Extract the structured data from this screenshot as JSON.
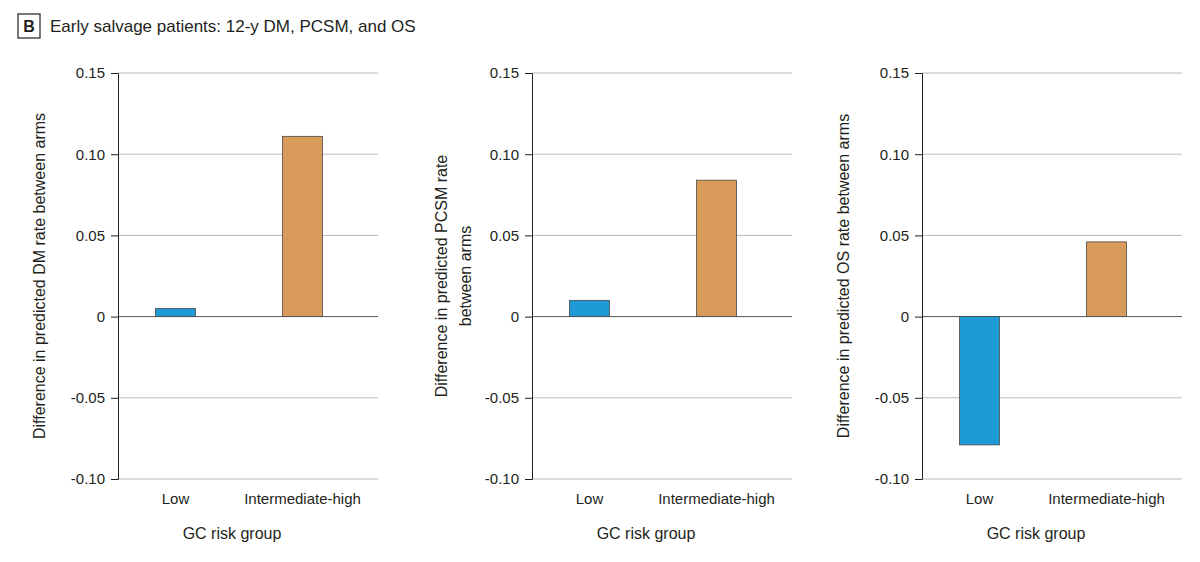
{
  "figure": {
    "label": "B",
    "title": "Early salvage patients: 12-y DM, PCSM, and OS"
  },
  "chart_data": [
    {
      "type": "bar",
      "categories": [
        "Low",
        "Intermediate-high"
      ],
      "values": [
        0.005,
        0.111
      ],
      "colors": [
        "#1e9ad6",
        "#d99b5a"
      ],
      "x_label": "GC risk group",
      "y_label": [
        "Difference in predicted DM rate between arms"
      ],
      "ylim": [
        -0.1,
        0.15
      ],
      "yticks": [
        {
          "value": -0.1,
          "label": "-0.10"
        },
        -0.05,
        0,
        0.05,
        {
          "value": 0.1,
          "label": "0.10"
        },
        0.15
      ],
      "grid": true
    },
    {
      "type": "bar",
      "categories": [
        "Low",
        "Intermediate-high"
      ],
      "values": [
        0.01,
        0.084
      ],
      "colors": [
        "#1e9ad6",
        "#d99b5a"
      ],
      "x_label": "GC risk group",
      "y_label": [
        "Difference in predicted PCSM rate",
        "between arms"
      ],
      "ylim": [
        -0.1,
        0.15
      ],
      "yticks": [
        {
          "value": -0.1,
          "label": "-0.10"
        },
        -0.05,
        0,
        0.05,
        {
          "value": 0.1,
          "label": "0.10"
        },
        0.15
      ],
      "grid": true
    },
    {
      "type": "bar",
      "categories": [
        "Low",
        "Intermediate-high"
      ],
      "values": [
        -0.079,
        0.046
      ],
      "colors": [
        "#1e9ad6",
        "#d99b5a"
      ],
      "x_label": "GC risk group",
      "y_label": [
        "Difference in predicted OS rate between arms"
      ],
      "ylim": [
        -0.1,
        0.15
      ],
      "yticks": [
        {
          "value": -0.1,
          "label": "-0.10"
        },
        -0.05,
        0,
        0.05,
        {
          "value": 0.1,
          "label": "0.10"
        },
        0.15
      ],
      "grid": true
    }
  ]
}
